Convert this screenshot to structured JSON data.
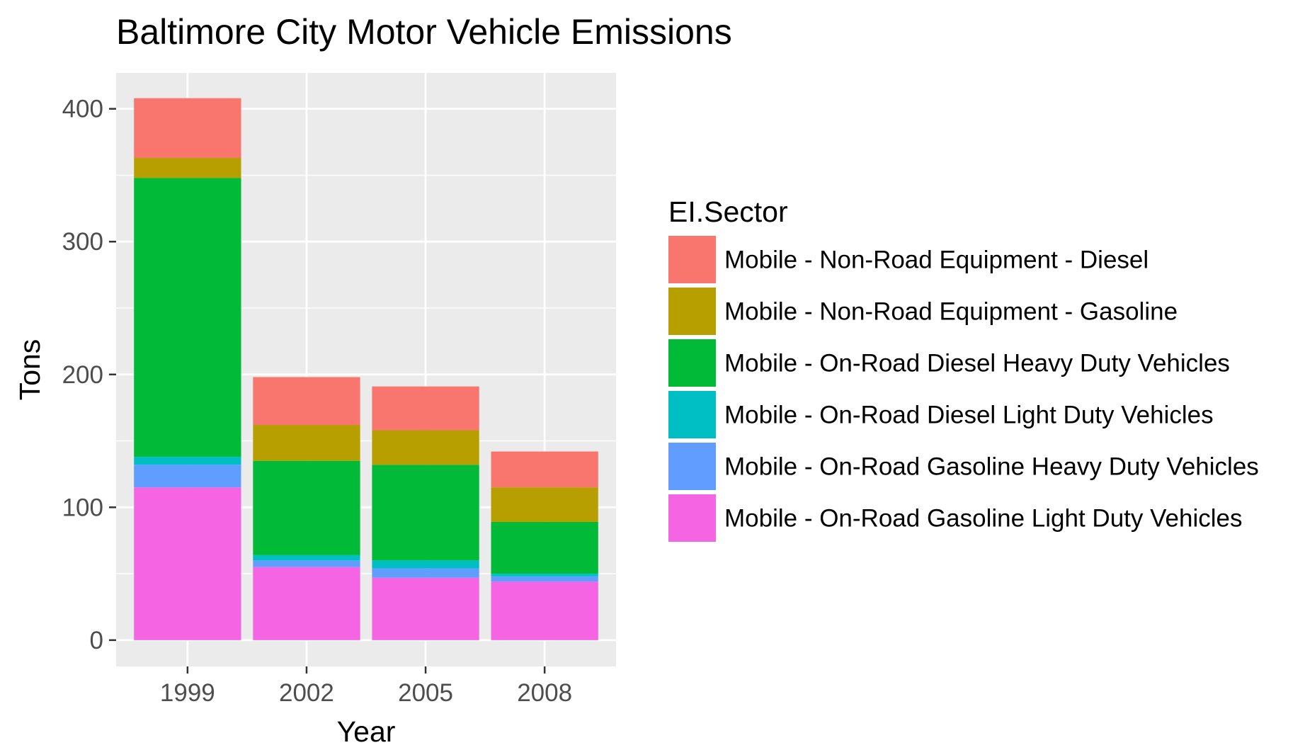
{
  "chart_data": {
    "type": "bar",
    "stacked": true,
    "title": "Baltimore City Motor Vehicle Emissions",
    "xlabel": "Year",
    "ylabel": "Tons",
    "categories": [
      "1999",
      "2002",
      "2005",
      "2008"
    ],
    "y_ticks": [
      "0",
      "100",
      "200",
      "300",
      "400"
    ],
    "ylim": [
      -19.8,
      427
    ],
    "grid": true,
    "legend": {
      "title": "EI.Sector",
      "position": "right"
    },
    "series": [
      {
        "name": "Mobile - On-Road Gasoline Light Duty Vehicles",
        "color": "#F564E3",
        "values": [
          115,
          55,
          47,
          44
        ]
      },
      {
        "name": "Mobile - On-Road Gasoline Heavy Duty Vehicles",
        "color": "#619CFF",
        "values": [
          17,
          5,
          7,
          4
        ]
      },
      {
        "name": "Mobile - On-Road Diesel Light Duty Vehicles",
        "color": "#00BFC4",
        "values": [
          6,
          4,
          6,
          2
        ]
      },
      {
        "name": "Mobile - On-Road Diesel Heavy Duty Vehicles",
        "color": "#00BA38",
        "values": [
          210,
          71,
          72,
          39
        ]
      },
      {
        "name": "Mobile - Non-Road Equipment - Gasoline",
        "color": "#B79F00",
        "values": [
          15,
          27,
          26,
          26
        ]
      },
      {
        "name": "Mobile - Non-Road Equipment - Diesel",
        "color": "#F8766D",
        "values": [
          45,
          36,
          33,
          27
        ]
      }
    ],
    "legend_order": [
      "Mobile - Non-Road Equipment - Diesel",
      "Mobile - Non-Road Equipment - Gasoline",
      "Mobile - On-Road Diesel Heavy Duty Vehicles",
      "Mobile - On-Road Diesel Light Duty Vehicles",
      "Mobile - On-Road Gasoline Heavy Duty Vehicles",
      "Mobile - On-Road Gasoline Light Duty Vehicles"
    ],
    "colors": {
      "panel": "#EBEBEB",
      "grid": "#FFFFFF",
      "tick": "#333333"
    }
  }
}
